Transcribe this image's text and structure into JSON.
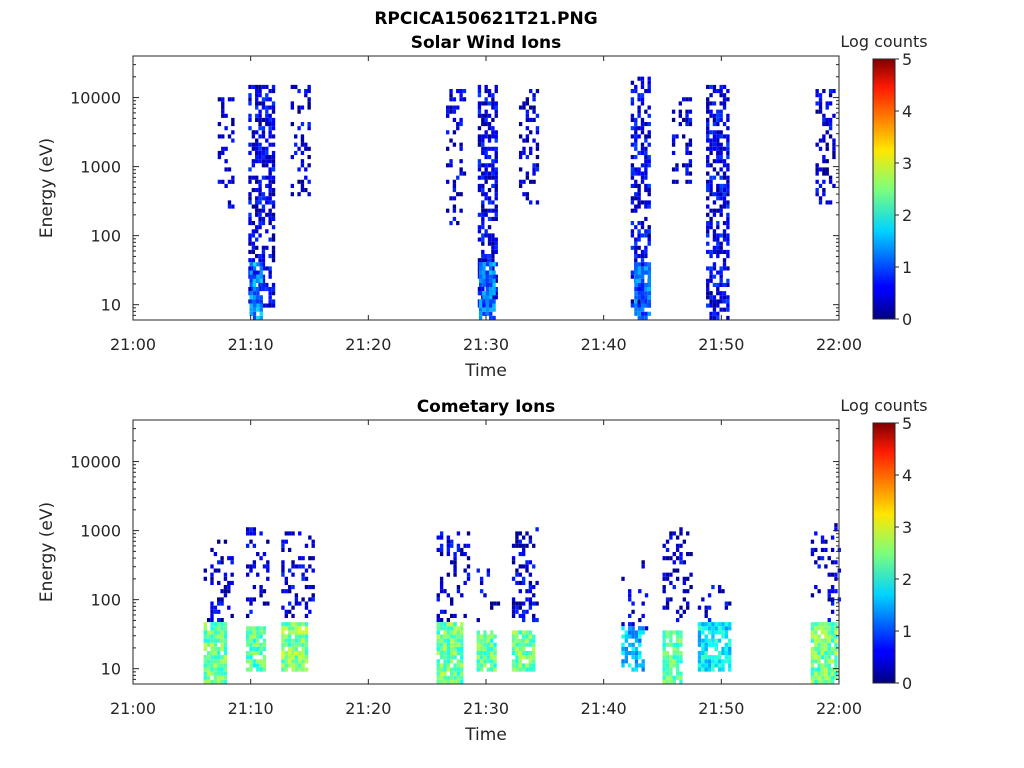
{
  "figure_title": "RPCICA150621T21.PNG",
  "chart_data": [
    {
      "type": "heatmap",
      "title": "Solar Wind Ions",
      "xlabel": "Time",
      "ylabel": "Energy (eV)",
      "x_ticks": [
        "21:00",
        "21:10",
        "21:20",
        "21:30",
        "21:40",
        "21:50",
        "22:00"
      ],
      "y_ticks": [
        "10",
        "100",
        "1000",
        "10000"
      ],
      "y_scale": "log",
      "xlim_minutes": [
        0,
        60
      ],
      "ylim_eV": [
        6,
        40000
      ],
      "colorbar": {
        "label": "Log counts",
        "ticks": [
          "0",
          "1",
          "2",
          "3",
          "4",
          "5"
        ],
        "range": [
          0,
          5
        ],
        "colormap": "jet"
      },
      "bursts": [
        {
          "t_start": 7.2,
          "t_end": 8.6,
          "e_low": 250,
          "e_high": 10000,
          "density": 0.3,
          "level": 0.4
        },
        {
          "t_start": 9.8,
          "t_end": 11.9,
          "e_low": 10,
          "e_high": 15000,
          "density": 0.55,
          "level": 0.5
        },
        {
          "t_start": 9.9,
          "t_end": 10.8,
          "e_low": 6,
          "e_high": 40,
          "density": 0.85,
          "level": 1.3
        },
        {
          "t_start": 13.4,
          "t_end": 15.0,
          "e_low": 400,
          "e_high": 15000,
          "density": 0.3,
          "level": 0.4
        },
        {
          "t_start": 26.6,
          "t_end": 28.3,
          "e_low": 150,
          "e_high": 12000,
          "density": 0.25,
          "level": 0.4
        },
        {
          "t_start": 29.3,
          "t_end": 31.0,
          "e_low": 10,
          "e_high": 15000,
          "density": 0.6,
          "level": 0.5
        },
        {
          "t_start": 29.4,
          "t_end": 30.6,
          "e_low": 6,
          "e_high": 40,
          "density": 0.85,
          "level": 1.2
        },
        {
          "t_start": 32.8,
          "t_end": 34.3,
          "e_low": 300,
          "e_high": 12000,
          "density": 0.35,
          "level": 0.4
        },
        {
          "t_start": 42.3,
          "t_end": 44.0,
          "e_low": 10,
          "e_high": 18000,
          "density": 0.55,
          "level": 0.5
        },
        {
          "t_start": 42.6,
          "t_end": 43.8,
          "e_low": 6,
          "e_high": 40,
          "density": 0.8,
          "level": 1.1
        },
        {
          "t_start": 45.8,
          "t_end": 47.4,
          "e_low": 500,
          "e_high": 10000,
          "density": 0.3,
          "level": 0.4
        },
        {
          "t_start": 48.7,
          "t_end": 50.5,
          "e_low": 6,
          "e_high": 15000,
          "density": 0.6,
          "level": 0.5
        },
        {
          "t_start": 58.0,
          "t_end": 59.6,
          "e_low": 300,
          "e_high": 12000,
          "density": 0.3,
          "level": 0.4
        }
      ]
    },
    {
      "type": "heatmap",
      "title": "Cometary Ions",
      "xlabel": "Time",
      "ylabel": "Energy (eV)",
      "x_ticks": [
        "21:00",
        "21:10",
        "21:20",
        "21:30",
        "21:40",
        "21:50",
        "22:00"
      ],
      "y_ticks": [
        "10",
        "100",
        "1000",
        "10000"
      ],
      "y_scale": "log",
      "xlim_minutes": [
        0,
        60
      ],
      "ylim_eV": [
        6,
        40000
      ],
      "colorbar": {
        "label": "Log counts",
        "ticks": [
          "0",
          "1",
          "2",
          "3",
          "4",
          "5"
        ],
        "range": [
          0,
          5
        ],
        "colormap": "jet"
      },
      "bursts": [
        {
          "t_start": 6.0,
          "t_end": 8.4,
          "e_low": 50,
          "e_high": 700,
          "density": 0.25,
          "level": 0.4
        },
        {
          "t_start": 6.0,
          "t_end": 7.8,
          "e_low": 6,
          "e_high": 45,
          "density": 0.9,
          "level": 2.4
        },
        {
          "t_start": 9.6,
          "t_end": 11.5,
          "e_low": 60,
          "e_high": 1200,
          "density": 0.25,
          "level": 0.4
        },
        {
          "t_start": 9.6,
          "t_end": 11.2,
          "e_low": 10,
          "e_high": 40,
          "density": 0.9,
          "level": 2.3
        },
        {
          "t_start": 12.6,
          "t_end": 15.2,
          "e_low": 60,
          "e_high": 900,
          "density": 0.3,
          "level": 0.4
        },
        {
          "t_start": 12.6,
          "t_end": 14.8,
          "e_low": 10,
          "e_high": 45,
          "density": 0.9,
          "level": 2.5
        },
        {
          "t_start": 25.8,
          "t_end": 28.4,
          "e_low": 50,
          "e_high": 900,
          "density": 0.25,
          "level": 0.4
        },
        {
          "t_start": 25.8,
          "t_end": 27.8,
          "e_low": 6,
          "e_high": 45,
          "density": 0.9,
          "level": 2.4
        },
        {
          "t_start": 29.2,
          "t_end": 31.0,
          "e_low": 50,
          "e_high": 300,
          "density": 0.2,
          "level": 0.4
        },
        {
          "t_start": 29.2,
          "t_end": 30.8,
          "e_low": 10,
          "e_high": 35,
          "density": 0.9,
          "level": 2.3
        },
        {
          "t_start": 32.2,
          "t_end": 34.4,
          "e_low": 50,
          "e_high": 1100,
          "density": 0.3,
          "level": 0.4
        },
        {
          "t_start": 32.2,
          "t_end": 34.0,
          "e_low": 10,
          "e_high": 35,
          "density": 0.9,
          "level": 2.4
        },
        {
          "t_start": 41.5,
          "t_end": 43.6,
          "e_low": 40,
          "e_high": 600,
          "density": 0.15,
          "level": 0.4
        },
        {
          "t_start": 41.5,
          "t_end": 43.4,
          "e_low": 10,
          "e_high": 40,
          "density": 0.5,
          "level": 1.6
        },
        {
          "t_start": 45.0,
          "t_end": 47.4,
          "e_low": 50,
          "e_high": 1000,
          "density": 0.25,
          "level": 0.4
        },
        {
          "t_start": 45.0,
          "t_end": 46.6,
          "e_low": 6,
          "e_high": 35,
          "density": 0.85,
          "level": 2.3
        },
        {
          "t_start": 48.0,
          "t_end": 50.6,
          "e_low": 50,
          "e_high": 150,
          "density": 0.2,
          "level": 0.4
        },
        {
          "t_start": 48.0,
          "t_end": 50.6,
          "e_low": 10,
          "e_high": 45,
          "density": 0.8,
          "level": 1.8
        },
        {
          "t_start": 57.6,
          "t_end": 59.9,
          "e_low": 50,
          "e_high": 1200,
          "density": 0.25,
          "level": 0.4
        },
        {
          "t_start": 57.6,
          "t_end": 59.6,
          "e_low": 6,
          "e_high": 45,
          "density": 0.9,
          "level": 2.4
        }
      ]
    }
  ]
}
